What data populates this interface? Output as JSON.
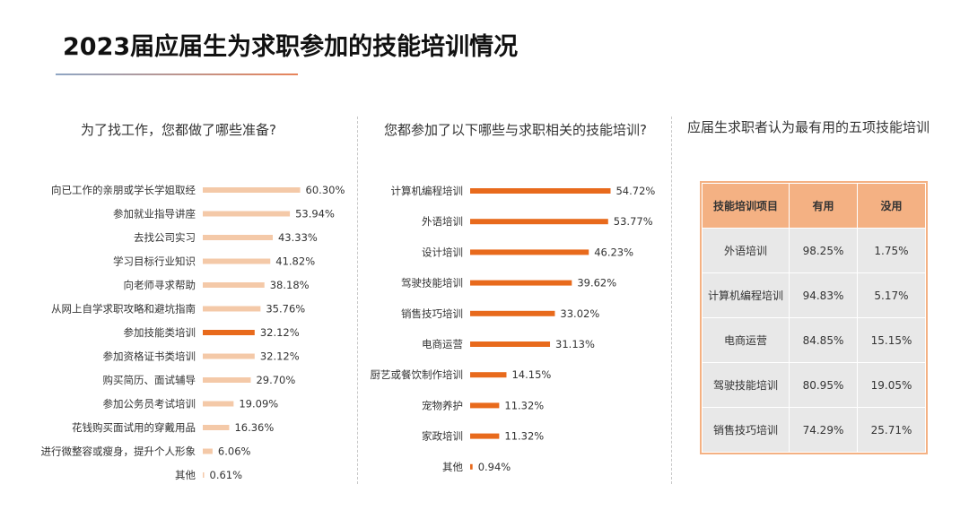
{
  "page": {
    "title": "2023届应届生为求职参加的技能培训情况"
  },
  "colors": {
    "light_bar": "#f4c9a8",
    "highlight_bar": "#e86a1c",
    "table_header": "#f4b183",
    "table_cell": "#e8e8e8"
  },
  "chart_data": [
    {
      "type": "bar",
      "orientation": "horizontal",
      "title": "为了找工作，您都做了哪些准备?",
      "categories": [
        "向已工作的亲朋或学长学姐取经",
        "参加就业指导讲座",
        "去找公司实习",
        "学习目标行业知识",
        "向老师寻求帮助",
        "从网上自学求职攻略和避坑指南",
        "参加技能类培训",
        "参加资格证书类培训",
        "购买简历、面试辅导",
        "参加公务员考试培训",
        "花钱购买面试用的穿戴用品",
        "进行微整容或瘦身，提升个人形象",
        "其他"
      ],
      "values": [
        60.3,
        53.94,
        43.33,
        41.82,
        38.18,
        35.76,
        32.12,
        32.12,
        29.7,
        19.09,
        16.36,
        6.06,
        0.61
      ],
      "labels": [
        "60.30%",
        "53.94%",
        "43.33%",
        "41.82%",
        "38.18%",
        "35.76%",
        "32.12%",
        "32.12%",
        "29.70%",
        "19.09%",
        "16.36%",
        "6.06%",
        "0.61%"
      ],
      "highlight_index": 6,
      "unit": "%"
    },
    {
      "type": "bar",
      "orientation": "horizontal",
      "title": "您都参加了以下哪些与求职相关的技能培训?",
      "categories": [
        "计算机编程培训",
        "外语培训",
        "设计培训",
        "驾驶技能培训",
        "销售技巧培训",
        "电商运营",
        "厨艺或餐饮制作培训",
        "宠物养护",
        "家政培训",
        "其他"
      ],
      "values": [
        54.72,
        53.77,
        46.23,
        39.62,
        33.02,
        31.13,
        14.15,
        11.32,
        11.32,
        0.94
      ],
      "labels": [
        "54.72%",
        "53.77%",
        "46.23%",
        "39.62%",
        "33.02%",
        "31.13%",
        "14.15%",
        "11.32%",
        "11.32%",
        "0.94%"
      ],
      "unit": "%"
    },
    {
      "type": "table",
      "title": "应届生求职者认为最有用的五项技能培训",
      "columns": [
        "技能培训项目",
        "有用",
        "没用"
      ],
      "rows": [
        [
          "外语培训",
          "98.25%",
          "1.75%"
        ],
        [
          "计算机编程培训",
          "94.83%",
          "5.17%"
        ],
        [
          "电商运营",
          "84.85%",
          "15.15%"
        ],
        [
          "驾驶技能培训",
          "80.95%",
          "19.05%"
        ],
        [
          "销售技巧培训",
          "74.29%",
          "25.71%"
        ]
      ]
    }
  ]
}
